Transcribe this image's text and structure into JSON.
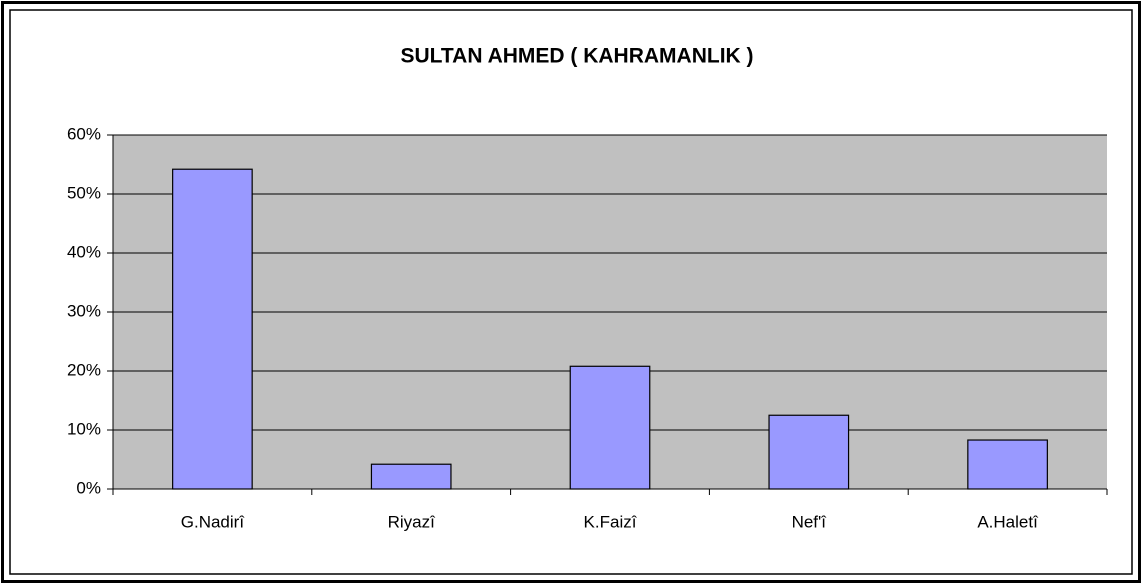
{
  "chart_data": {
    "type": "bar",
    "title": "SULTAN AHMED ( KAHRAMANLIK )",
    "categories": [
      "G.Nadirî",
      "Riyazî",
      "K.Faizî",
      "Nef'î",
      "A.Haletî"
    ],
    "values": [
      54.2,
      4.2,
      20.8,
      12.5,
      8.3
    ],
    "color": "#9999ff",
    "ylim": [
      0,
      60
    ],
    "yticks": [
      {
        "value": 0,
        "label": "0%"
      },
      {
        "value": 10,
        "label": "10%"
      },
      {
        "value": 20,
        "label": "20%"
      },
      {
        "value": 30,
        "label": "30%"
      },
      {
        "value": 40,
        "label": "40%"
      },
      {
        "value": 50,
        "label": "50%"
      },
      {
        "value": 60,
        "label": "60%"
      }
    ],
    "grid": true
  }
}
